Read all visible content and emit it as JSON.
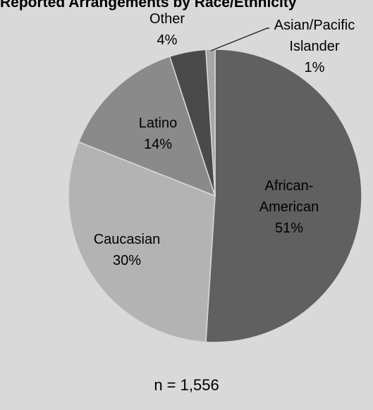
{
  "chart_data": {
    "type": "pie",
    "title": "Reported Arrangements by Race/Ethnicity",
    "slices": [
      {
        "label": "African-American",
        "value": 51,
        "value_label": "51%",
        "color": "#606060"
      },
      {
        "label": "Caucasian",
        "value": 30,
        "value_label": "30%",
        "color": "#b3b3b3"
      },
      {
        "label": "Latino",
        "value": 14,
        "value_label": "14%",
        "color": "#8a8a8a"
      },
      {
        "label": "Other",
        "value": 4,
        "value_label": "4%",
        "color": "#4a4a4a"
      },
      {
        "label": "Asian/Pacific Islander",
        "value": 1,
        "value_label": "1%",
        "color": "#a6a6a6"
      }
    ],
    "annotation": "n = 1,556"
  }
}
